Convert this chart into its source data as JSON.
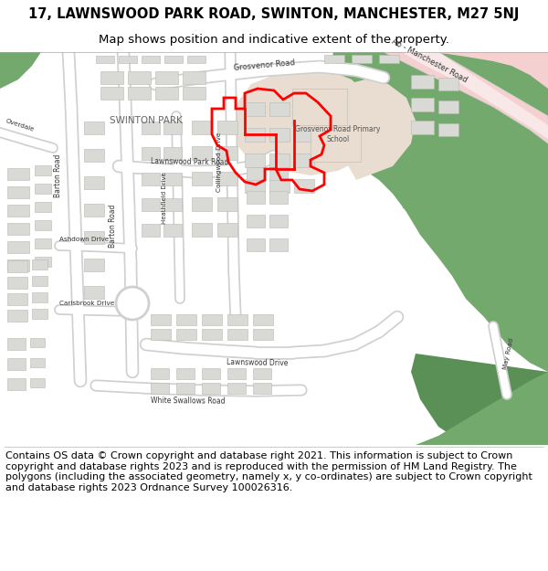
{
  "title_line1": "17, LAWNSWOOD PARK ROAD, SWINTON, MANCHESTER, M27 5NJ",
  "title_line2": "Map shows position and indicative extent of the property.",
  "copyright_text": "Contains OS data © Crown copyright and database right 2021. This information is subject to Crown copyright and database rights 2023 and is reproduced with the permission of HM Land Registry. The polygons (including the associated geometry, namely x, y co-ordinates) are subject to Crown copyright and database rights 2023 Ordnance Survey 100026316.",
  "bg": "#f0efe9",
  "road_fill": "#ffffff",
  "road_case": "#d0d0d0",
  "bldg_fill": "#d9d9d5",
  "bldg_edge": "#b8b8b4",
  "green1": "#74a96e",
  "green2": "#5a8f56",
  "beige": "#e8ddd0",
  "pink_road": "#f5d0d0",
  "red": "#ff0000",
  "text_dark": "#333333",
  "text_mid": "#555555"
}
